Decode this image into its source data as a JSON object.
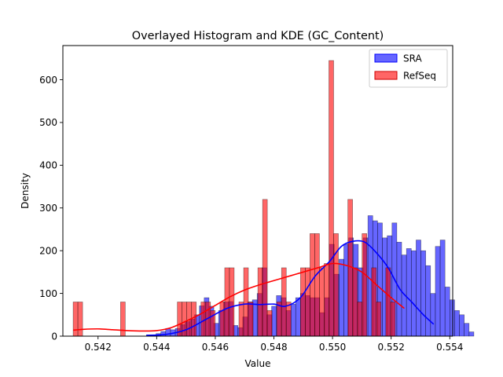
{
  "chart_data": {
    "type": "bar",
    "title": "Overlayed Histogram and KDE (GC_Content)",
    "xlabel": "Value",
    "ylabel": "Density",
    "xlim": [
      0.5408,
      0.5541
    ],
    "ylim": [
      0,
      680
    ],
    "xticks": [
      0.542,
      0.544,
      0.546,
      0.548,
      0.55,
      0.552,
      0.554
    ],
    "xtick_labels": [
      "0.542",
      "0.544",
      "0.546",
      "0.548",
      "0.550",
      "0.552",
      "0.554"
    ],
    "yticks": [
      0,
      100,
      200,
      300,
      400,
      500,
      600
    ],
    "ytick_labels": [
      "0",
      "100",
      "200",
      "300",
      "400",
      "500",
      "600"
    ],
    "legend_position": "top-right",
    "series": [
      {
        "name": "SRA",
        "kind": "histogram",
        "color": "#0000ff",
        "kde_color": "#0000ff",
        "bin_start": 0.54365,
        "bin_width": 0.0001643,
        "values": [
          3,
          3,
          6,
          11,
          18,
          15,
          18,
          27,
          34,
          40,
          50,
          71,
          90,
          70,
          30,
          60,
          80,
          81,
          25,
          20,
          45,
          80,
          85,
          100,
          160,
          50,
          70,
          95,
          90,
          60,
          75,
          90,
          100,
          95,
          90,
          90,
          55,
          90,
          215,
          145,
          180,
          215,
          230,
          215,
          160,
          230,
          282,
          270,
          265,
          230,
          235,
          265,
          220,
          190,
          205,
          200,
          225,
          200,
          165,
          100,
          210,
          225,
          115,
          85,
          60,
          50,
          30,
          10
        ],
        "kde_x": [
          0.54365,
          0.5443,
          0.545,
          0.5457,
          0.5464,
          0.547,
          0.5475,
          0.548,
          0.5484,
          0.5489,
          0.5494,
          0.5499,
          0.5503,
          0.5507,
          0.5511,
          0.5515,
          0.5519,
          0.5523,
          0.5527,
          0.5531,
          0.55345
        ],
        "kde_y": [
          2,
          4,
          15,
          40,
          65,
          75,
          74,
          75,
          70,
          90,
          140,
          175,
          210,
          222,
          220,
          195,
          160,
          110,
          80,
          50,
          28
        ]
      },
      {
        "name": "RefSeq",
        "kind": "histogram",
        "color": "#ff0000",
        "kde_color": "#ff0000",
        "bin_start": 0.54115,
        "bin_width": 0.0001616,
        "values": [
          80,
          80,
          0,
          0,
          0,
          0,
          0,
          0,
          0,
          0,
          80,
          0,
          0,
          0,
          0,
          0,
          0,
          0,
          0,
          0,
          0,
          0,
          80,
          80,
          80,
          80,
          0,
          80,
          80,
          60,
          0,
          80,
          160,
          160,
          0,
          80,
          160,
          80,
          0,
          160,
          320,
          60,
          0,
          80,
          160,
          80,
          0,
          0,
          160,
          160,
          240,
          240,
          160,
          170,
          645,
          240,
          0,
          0,
          320,
          160,
          80,
          240,
          0,
          160,
          80,
          0,
          160,
          80
        ],
        "kde_x": [
          0.54115,
          0.5415,
          0.542,
          0.5425,
          0.543,
          0.5435,
          0.544,
          0.5445,
          0.545,
          0.5455,
          0.546,
          0.5465,
          0.547,
          0.5475,
          0.548,
          0.5485,
          0.549,
          0.5495,
          0.55,
          0.5505,
          0.551,
          0.5515,
          0.552,
          0.55245
        ],
        "kde_y": [
          14,
          16,
          17,
          15,
          13,
          12,
          13,
          20,
          35,
          52,
          72,
          92,
          108,
          120,
          130,
          140,
          150,
          160,
          170,
          165,
          150,
          120,
          90,
          65
        ]
      }
    ]
  }
}
